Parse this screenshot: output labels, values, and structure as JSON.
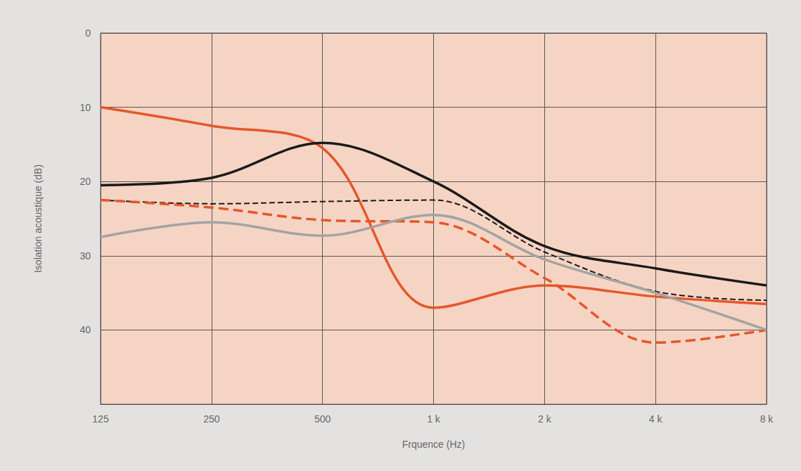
{
  "chart_data": {
    "type": "line",
    "x_label": "Frquence (Hz)",
    "y_label": "Isolation acoustique (dB)",
    "categories": [
      "125",
      "250",
      "500",
      "1 k",
      "2 k",
      "4 k",
      "8 k"
    ],
    "series": [
      {
        "color": "#e5562a",
        "line_style": "solid",
        "values": [
          10,
          12.5,
          15.5,
          37,
          34,
          35.5,
          36.5
        ]
      },
      {
        "color": "#1a1a1a",
        "line_style": "solid",
        "values": [
          20.5,
          19.5,
          14.8,
          20,
          28.7,
          31.7,
          34
        ]
      },
      {
        "color": "#1a1a1a",
        "line_style": "dashed",
        "values": [
          22.5,
          23,
          22.7,
          22.5,
          29.5,
          34.8,
          36
        ]
      },
      {
        "color": "#e5562a",
        "line_style": "dashed",
        "values": [
          22.5,
          23.5,
          25.2,
          25.5,
          33,
          41.7,
          40
        ]
      },
      {
        "color": "#a3a3a3",
        "line_style": "solid",
        "values": [
          27.5,
          25.5,
          27.3,
          24.5,
          30.5,
          35,
          40
        ]
      }
    ],
    "ylim": [
      0,
      50
    ],
    "yticks": [
      0,
      10,
      20,
      30,
      40
    ],
    "grid": true,
    "marker": "none"
  }
}
